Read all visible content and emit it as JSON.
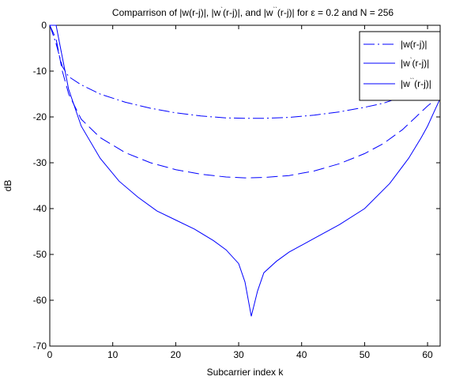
{
  "chart_data": {
    "type": "line",
    "title": {
      "prefix": "Comparrison of |w(r-j)|, |w",
      "mid1": "(r-j)|, and |w",
      "suffix": "(r-j)| for ε = 0.2 and N = 256",
      "sup1": "`",
      "sup2": "``"
    },
    "xlabel": "Subcarrier index k",
    "ylabel": "dB",
    "xlim": [
      0,
      62
    ],
    "ylim": [
      -70,
      0
    ],
    "xticks": [
      0,
      10,
      20,
      30,
      40,
      50,
      60
    ],
    "yticks": [
      0,
      -10,
      -20,
      -30,
      -40,
      -50,
      -60,
      -70
    ],
    "grid": false,
    "legend_placement": "top-right",
    "color": "#0000ff",
    "series": [
      {
        "name": "|w(r-j)|",
        "name_parts": [
          "|w(r-j)|",
          "",
          ""
        ],
        "dash": "dashdot",
        "x": [
          0,
          1,
          2,
          3,
          5,
          8,
          12,
          16,
          20,
          24,
          28,
          31,
          34,
          38,
          42,
          46,
          50,
          53,
          56,
          58,
          60,
          61,
          62
        ],
        "y": [
          0,
          -4,
          -9,
          -11.2,
          -13,
          -15,
          -16.8,
          -18.1,
          -19.1,
          -19.8,
          -20.2,
          -20.3,
          -20.3,
          -20.1,
          -19.6,
          -18.9,
          -17.9,
          -17.0,
          -15.6,
          -14.6,
          -13.0,
          -12.0,
          -11.0
        ]
      },
      {
        "name": "|w`(r-j)|",
        "name_parts": [
          "|w",
          "`",
          "(r-j)|"
        ],
        "dash": "dashed",
        "x": [
          0,
          1,
          2,
          3,
          5,
          8,
          12,
          16,
          20,
          24,
          28,
          31,
          34,
          38,
          42,
          46,
          50,
          53,
          56,
          58,
          60,
          61,
          62
        ],
        "y": [
          0,
          -3,
          -10,
          -15,
          -20.5,
          -24.5,
          -27.8,
          -30,
          -31.5,
          -32.5,
          -33.1,
          -33.3,
          -33.2,
          -32.8,
          -31.8,
          -30.2,
          -28,
          -25.8,
          -22.8,
          -20.2,
          -17.6,
          -16.5,
          -15.5
        ]
      },
      {
        "name": "|w``(r-j)|",
        "name_parts": [
          "|w",
          "``",
          "(r-j)|"
        ],
        "dash": "solid",
        "x": [
          0,
          1,
          2,
          3,
          5,
          8,
          11,
          14,
          17,
          20,
          23,
          26,
          28,
          30,
          31,
          32,
          33,
          34,
          36,
          38,
          42,
          46,
          50,
          54,
          57,
          59,
          60,
          61,
          62
        ],
        "y": [
          0,
          0,
          -7,
          -14,
          -22,
          -29,
          -34,
          -37.5,
          -40.5,
          -42.5,
          -44.5,
          -47,
          -49,
          -52,
          -56,
          -63.5,
          -58,
          -54,
          -51.5,
          -49.5,
          -46.5,
          -43.5,
          -40,
          -34.5,
          -29,
          -24.5,
          -22,
          -19,
          -16
        ]
      }
    ]
  }
}
